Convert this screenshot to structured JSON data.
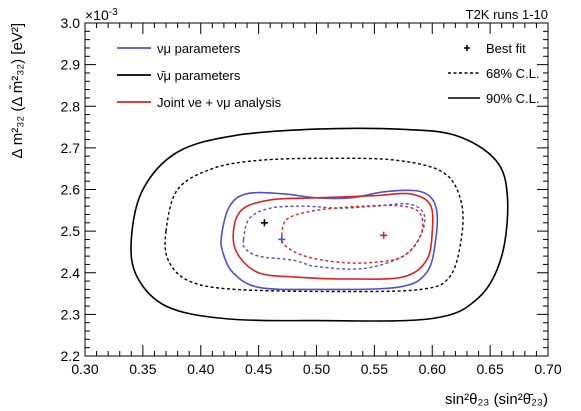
{
  "chart_data": {
    "type": "line",
    "annotation": "T2K runs 1-10",
    "exponent_label": "×10",
    "exponent_power": "-3",
    "xlabel": "sin²θ₂₃ (sin²θ̄₂₃)",
    "ylabel": "Δ m²₃₂ (Δ m̄²₃₂) [eV²]",
    "xlim": [
      0.3,
      0.7
    ],
    "ylim": [
      2.2,
      3.0
    ],
    "x_ticks": [
      "0.30",
      "0.35",
      "0.40",
      "0.45",
      "0.50",
      "0.55",
      "0.60",
      "0.65",
      "0.70"
    ],
    "y_ticks": [
      "2.2",
      "2.3",
      "2.4",
      "2.5",
      "2.6",
      "2.7",
      "2.8",
      "2.9",
      "3.0"
    ],
    "legend_left": [
      {
        "label": "νμ parameters",
        "color": "#5050cc"
      },
      {
        "label": "ν̄μ parameters",
        "color": "#000000"
      },
      {
        "label": "Joint νe + νμ analysis",
        "color": "#dd2222"
      }
    ],
    "legend_right": [
      {
        "label": "Best fit",
        "style": "marker"
      },
      {
        "label": "68% C.L.",
        "style": "dashed"
      },
      {
        "label": "90% C.L.",
        "style": "solid"
      }
    ],
    "series": [
      {
        "name": "ν̄μ parameters",
        "color": "#000000",
        "cl": "90%",
        "points": [
          [
            0.34,
            2.48
          ],
          [
            0.35,
            2.6
          ],
          [
            0.38,
            2.69
          ],
          [
            0.43,
            2.73
          ],
          [
            0.5,
            2.745
          ],
          [
            0.57,
            2.745
          ],
          [
            0.62,
            2.73
          ],
          [
            0.655,
            2.67
          ],
          [
            0.665,
            2.58
          ],
          [
            0.66,
            2.44
          ],
          [
            0.64,
            2.34
          ],
          [
            0.6,
            2.29
          ],
          [
            0.5,
            2.285
          ],
          [
            0.42,
            2.29
          ],
          [
            0.37,
            2.32
          ],
          [
            0.345,
            2.39
          ]
        ]
      },
      {
        "name": "ν̄μ parameters",
        "color": "#000000",
        "cl": "68%",
        "points": [
          [
            0.37,
            2.5
          ],
          [
            0.38,
            2.6
          ],
          [
            0.41,
            2.65
          ],
          [
            0.45,
            2.67
          ],
          [
            0.51,
            2.675
          ],
          [
            0.57,
            2.67
          ],
          [
            0.61,
            2.64
          ],
          [
            0.625,
            2.57
          ],
          [
            0.625,
            2.48
          ],
          [
            0.615,
            2.39
          ],
          [
            0.59,
            2.36
          ],
          [
            0.52,
            2.355
          ],
          [
            0.43,
            2.36
          ],
          [
            0.39,
            2.38
          ],
          [
            0.372,
            2.43
          ]
        ]
      },
      {
        "name": "νμ parameters",
        "color": "#5050cc",
        "cl": "90%",
        "points": [
          [
            0.418,
            2.49
          ],
          [
            0.425,
            2.56
          ],
          [
            0.44,
            2.59
          ],
          [
            0.47,
            2.59
          ],
          [
            0.5,
            2.58
          ],
          [
            0.53,
            2.58
          ],
          [
            0.56,
            2.595
          ],
          [
            0.59,
            2.595
          ],
          [
            0.603,
            2.56
          ],
          [
            0.603,
            2.48
          ],
          [
            0.595,
            2.4
          ],
          [
            0.57,
            2.365
          ],
          [
            0.5,
            2.36
          ],
          [
            0.45,
            2.365
          ],
          [
            0.428,
            2.4
          ],
          [
            0.419,
            2.45
          ]
        ]
      },
      {
        "name": "νμ parameters",
        "color": "#5050cc",
        "cl": "68%",
        "points": [
          [
            0.437,
            2.48
          ],
          [
            0.442,
            2.53
          ],
          [
            0.46,
            2.555
          ],
          [
            0.49,
            2.56
          ],
          [
            0.52,
            2.555
          ],
          [
            0.55,
            2.56
          ],
          [
            0.58,
            2.565
          ],
          [
            0.593,
            2.54
          ],
          [
            0.59,
            2.49
          ],
          [
            0.575,
            2.44
          ],
          [
            0.54,
            2.41
          ],
          [
            0.5,
            2.415
          ],
          [
            0.48,
            2.43
          ],
          [
            0.45,
            2.44
          ],
          [
            0.438,
            2.46
          ]
        ]
      },
      {
        "name": "Joint νe + νμ analysis",
        "color": "#dd2222",
        "cl": "90%",
        "points": [
          [
            0.428,
            2.49
          ],
          [
            0.435,
            2.55
          ],
          [
            0.46,
            2.575
          ],
          [
            0.5,
            2.58
          ],
          [
            0.55,
            2.585
          ],
          [
            0.58,
            2.59
          ],
          [
            0.598,
            2.565
          ],
          [
            0.6,
            2.5
          ],
          [
            0.595,
            2.43
          ],
          [
            0.575,
            2.39
          ],
          [
            0.53,
            2.385
          ],
          [
            0.48,
            2.39
          ],
          [
            0.45,
            2.4
          ],
          [
            0.433,
            2.44
          ]
        ]
      },
      {
        "name": "Joint νe + νμ analysis",
        "color": "#dd2222",
        "cl": "68%",
        "points": [
          [
            0.47,
            2.49
          ],
          [
            0.475,
            2.53
          ],
          [
            0.5,
            2.55
          ],
          [
            0.54,
            2.56
          ],
          [
            0.575,
            2.56
          ],
          [
            0.59,
            2.54
          ],
          [
            0.59,
            2.49
          ],
          [
            0.575,
            2.44
          ],
          [
            0.55,
            2.425
          ],
          [
            0.52,
            2.425
          ],
          [
            0.49,
            2.44
          ],
          [
            0.473,
            2.465
          ]
        ]
      }
    ],
    "best_fits": [
      {
        "series": "ν̄μ parameters",
        "color": "#000000",
        "x": 0.455,
        "y": 2.52
      },
      {
        "series": "νμ parameters",
        "color": "#5050cc",
        "x": 0.47,
        "y": 2.48
      },
      {
        "series": "Joint νe + νμ analysis",
        "color": "#dd2222",
        "x": 0.558,
        "y": 2.49
      }
    ]
  }
}
